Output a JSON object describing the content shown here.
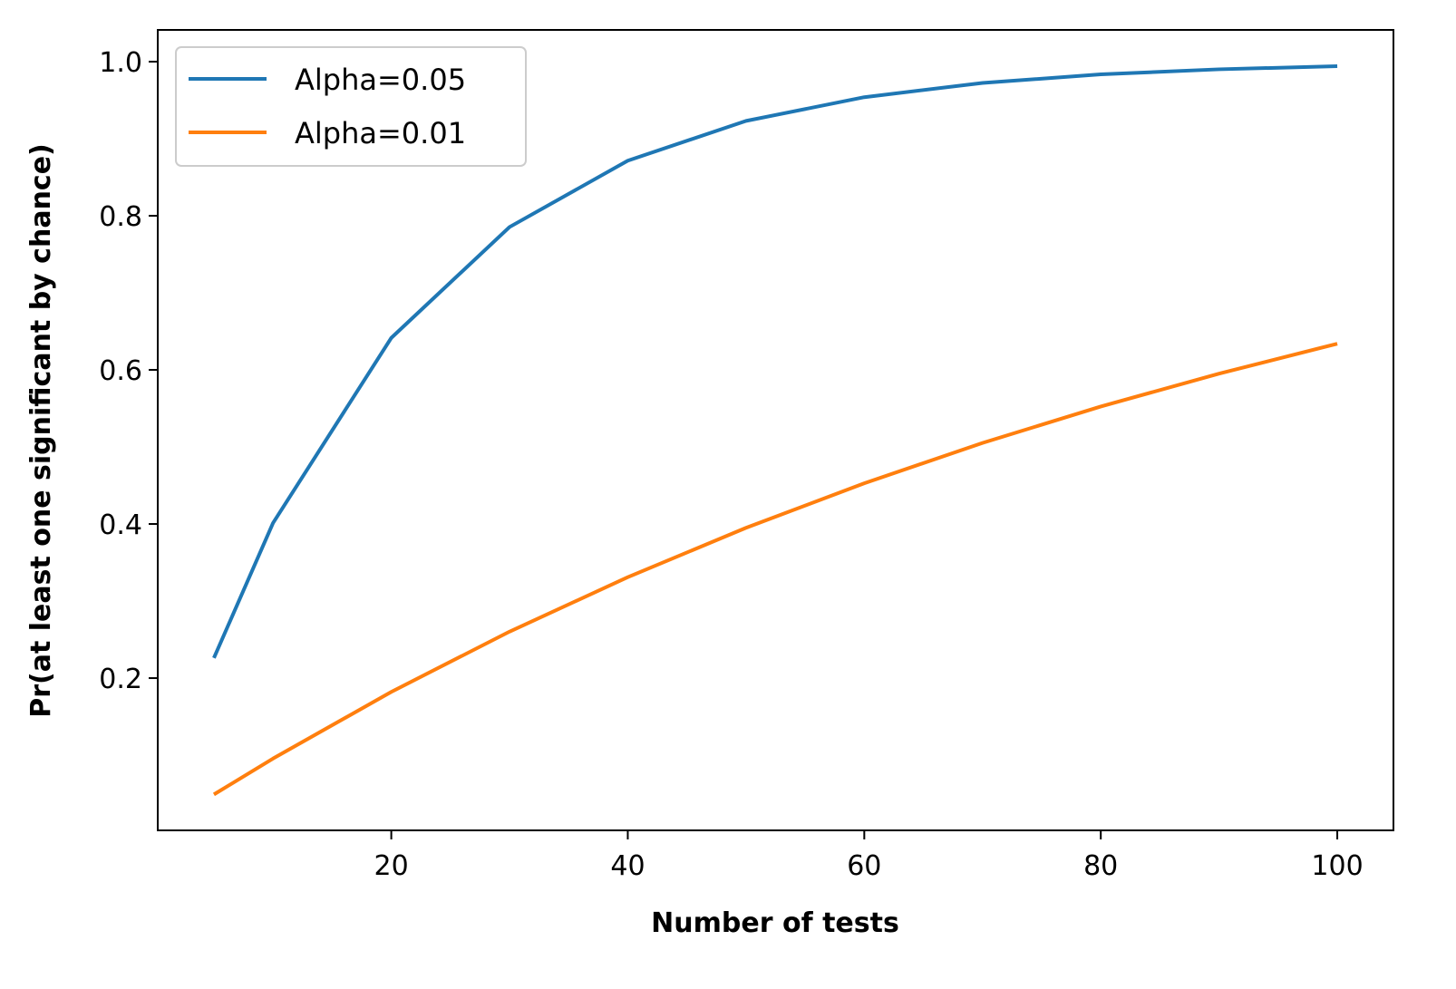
{
  "chart_data": {
    "type": "line",
    "title": "",
    "xlabel": "Number of tests",
    "ylabel": "Pr(at least one significant by chance)",
    "x": [
      5,
      10,
      20,
      30,
      40,
      50,
      60,
      70,
      80,
      90,
      100
    ],
    "xlim": [
      0.25,
      104.75
    ],
    "ylim": [
      0.0024,
      1.0412
    ],
    "xticks": [
      20,
      40,
      60,
      80,
      100
    ],
    "xtick_labels": [
      "20",
      "40",
      "60",
      "80",
      "100"
    ],
    "yticks": [
      0.2,
      0.4,
      0.6,
      0.8,
      1.0
    ],
    "ytick_labels": [
      "0.2",
      "0.4",
      "0.6",
      "0.8",
      "1.0"
    ],
    "grid": false,
    "legend_placement": "top-left",
    "series": [
      {
        "name": "Alpha=0.05",
        "color": "#1f77b4",
        "values": [
          0.2262,
          0.4013,
          0.6415,
          0.7854,
          0.8715,
          0.9231,
          0.9539,
          0.9724,
          0.9835,
          0.9901,
          0.9941
        ]
      },
      {
        "name": "Alpha=0.01",
        "color": "#ff7f0e",
        "values": [
          0.049,
          0.0956,
          0.1821,
          0.2603,
          0.331,
          0.395,
          0.4528,
          0.5052,
          0.5525,
          0.5951,
          0.634
        ]
      }
    ]
  }
}
